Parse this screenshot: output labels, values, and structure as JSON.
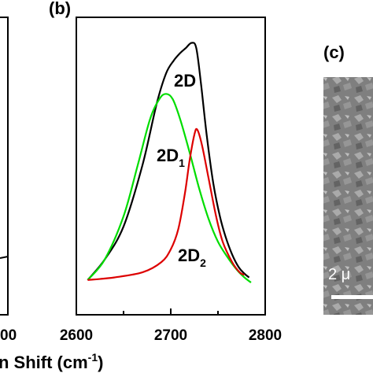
{
  "chart_data": [
    {
      "panel": "a",
      "type": "line",
      "x_tick_labels": [
        "00"
      ],
      "xlabel": "n Shift (cm",
      "xlabel_sup": "-1",
      "xlabel_close": ")"
    },
    {
      "panel": "b",
      "panel_label": "(b)",
      "type": "line",
      "xlim": [
        2600,
        2800
      ],
      "x_ticks": [
        2600,
        2700,
        2800
      ],
      "x_tick_labels": [
        "2600",
        "2700",
        "2800"
      ],
      "series": [
        {
          "label_main": "2D",
          "label_sub": "",
          "color": "#000000",
          "x": [
            2612,
            2630,
            2650,
            2670,
            2685,
            2695,
            2703,
            2710,
            2716,
            2722,
            2727,
            2732,
            2738,
            2745,
            2752,
            2758,
            2765,
            2772,
            2778,
            2783
          ],
          "y": [
            0.05,
            0.13,
            0.26,
            0.5,
            0.74,
            0.86,
            0.91,
            0.94,
            0.96,
            0.98,
            0.96,
            0.82,
            0.62,
            0.43,
            0.3,
            0.22,
            0.15,
            0.1,
            0.075,
            0.06
          ]
        },
        {
          "label_main": "2D",
          "label_sub": "1",
          "color": "#00dd00",
          "x": [
            2612,
            2630,
            2650,
            2665,
            2678,
            2688,
            2695,
            2702,
            2710,
            2720,
            2730,
            2740,
            2750,
            2760,
            2770,
            2778,
            2785
          ],
          "y": [
            0.05,
            0.13,
            0.3,
            0.5,
            0.68,
            0.76,
            0.78,
            0.76,
            0.68,
            0.55,
            0.41,
            0.29,
            0.2,
            0.14,
            0.09,
            0.06,
            0.04
          ]
        },
        {
          "label_main": "2D",
          "label_sub": "2",
          "color": "#dd0000",
          "x": [
            2612,
            2640,
            2670,
            2690,
            2700,
            2708,
            2715,
            2720,
            2725,
            2728,
            2733,
            2740,
            2748,
            2755,
            2765,
            2773,
            2778
          ],
          "y": [
            0.05,
            0.06,
            0.08,
            0.12,
            0.17,
            0.25,
            0.39,
            0.52,
            0.62,
            0.64,
            0.58,
            0.45,
            0.3,
            0.2,
            0.12,
            0.08,
            0.07
          ]
        }
      ]
    },
    {
      "panel": "c",
      "type": "image",
      "panel_label": "(c)",
      "scale_bar_label": "2 μ"
    }
  ]
}
